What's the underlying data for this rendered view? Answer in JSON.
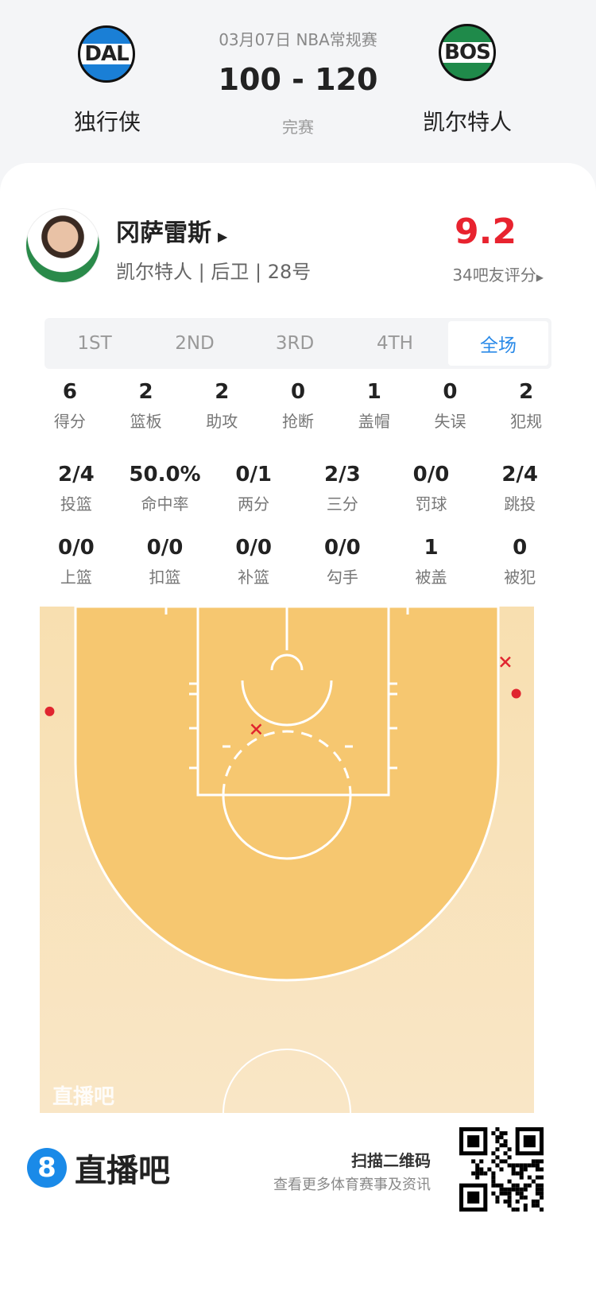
{
  "header": {
    "date_league": "03月07日 NBA常规赛",
    "score": "100 - 120",
    "status": "完赛",
    "home": {
      "abbr": "DAL",
      "name": "独行侠",
      "color": "#1a7fd6"
    },
    "away": {
      "abbr": "BOS",
      "name": "凯尔特人",
      "color": "#1f8a4a"
    }
  },
  "player": {
    "name": "冈萨雷斯",
    "team": "凯尔特人",
    "position": "后卫",
    "number": "28号",
    "rating": "9.2",
    "rating_label": "34吧友评分",
    "rating_color": "#e8232f"
  },
  "tabs": [
    {
      "label": "1ST"
    },
    {
      "label": "2ND"
    },
    {
      "label": "3RD"
    },
    {
      "label": "4TH"
    },
    {
      "label": "全场",
      "active": true
    }
  ],
  "stats": [
    [
      {
        "v": "6",
        "l": "得分"
      },
      {
        "v": "2",
        "l": "篮板"
      },
      {
        "v": "2",
        "l": "助攻"
      },
      {
        "v": "0",
        "l": "抢断"
      },
      {
        "v": "1",
        "l": "盖帽"
      },
      {
        "v": "0",
        "l": "失误"
      },
      {
        "v": "2",
        "l": "犯规"
      }
    ],
    [
      {
        "v": "2/4",
        "l": "投篮"
      },
      {
        "v": "50.0%",
        "l": "命中率"
      },
      {
        "v": "0/1",
        "l": "两分"
      },
      {
        "v": "2/3",
        "l": "三分"
      },
      {
        "v": "0/0",
        "l": "罚球"
      },
      {
        "v": "2/4",
        "l": "跳投"
      }
    ],
    [
      {
        "v": "0/0",
        "l": "上篮"
      },
      {
        "v": "0/0",
        "l": "扣篮"
      },
      {
        "v": "0/0",
        "l": "补篮"
      },
      {
        "v": "0/0",
        "l": "勾手"
      },
      {
        "v": "1",
        "l": "被盖"
      },
      {
        "v": "0",
        "l": "被犯"
      }
    ]
  ],
  "shot_chart": {
    "watermark": "直播吧",
    "units": "feet from left sideline / baseline",
    "shots": [
      {
        "x": 1.0,
        "y": 10.6,
        "made": true
      },
      {
        "x": 48.2,
        "y": 8.8,
        "made": true
      },
      {
        "x": 21.9,
        "y": 12.4,
        "made": false
      },
      {
        "x": 47.1,
        "y": 5.6,
        "made": false
      }
    ]
  },
  "footer": {
    "brand": "直播吧",
    "brand_badge": "8",
    "scan": "扫描二维码",
    "more": "查看更多体育赛事及资讯"
  }
}
